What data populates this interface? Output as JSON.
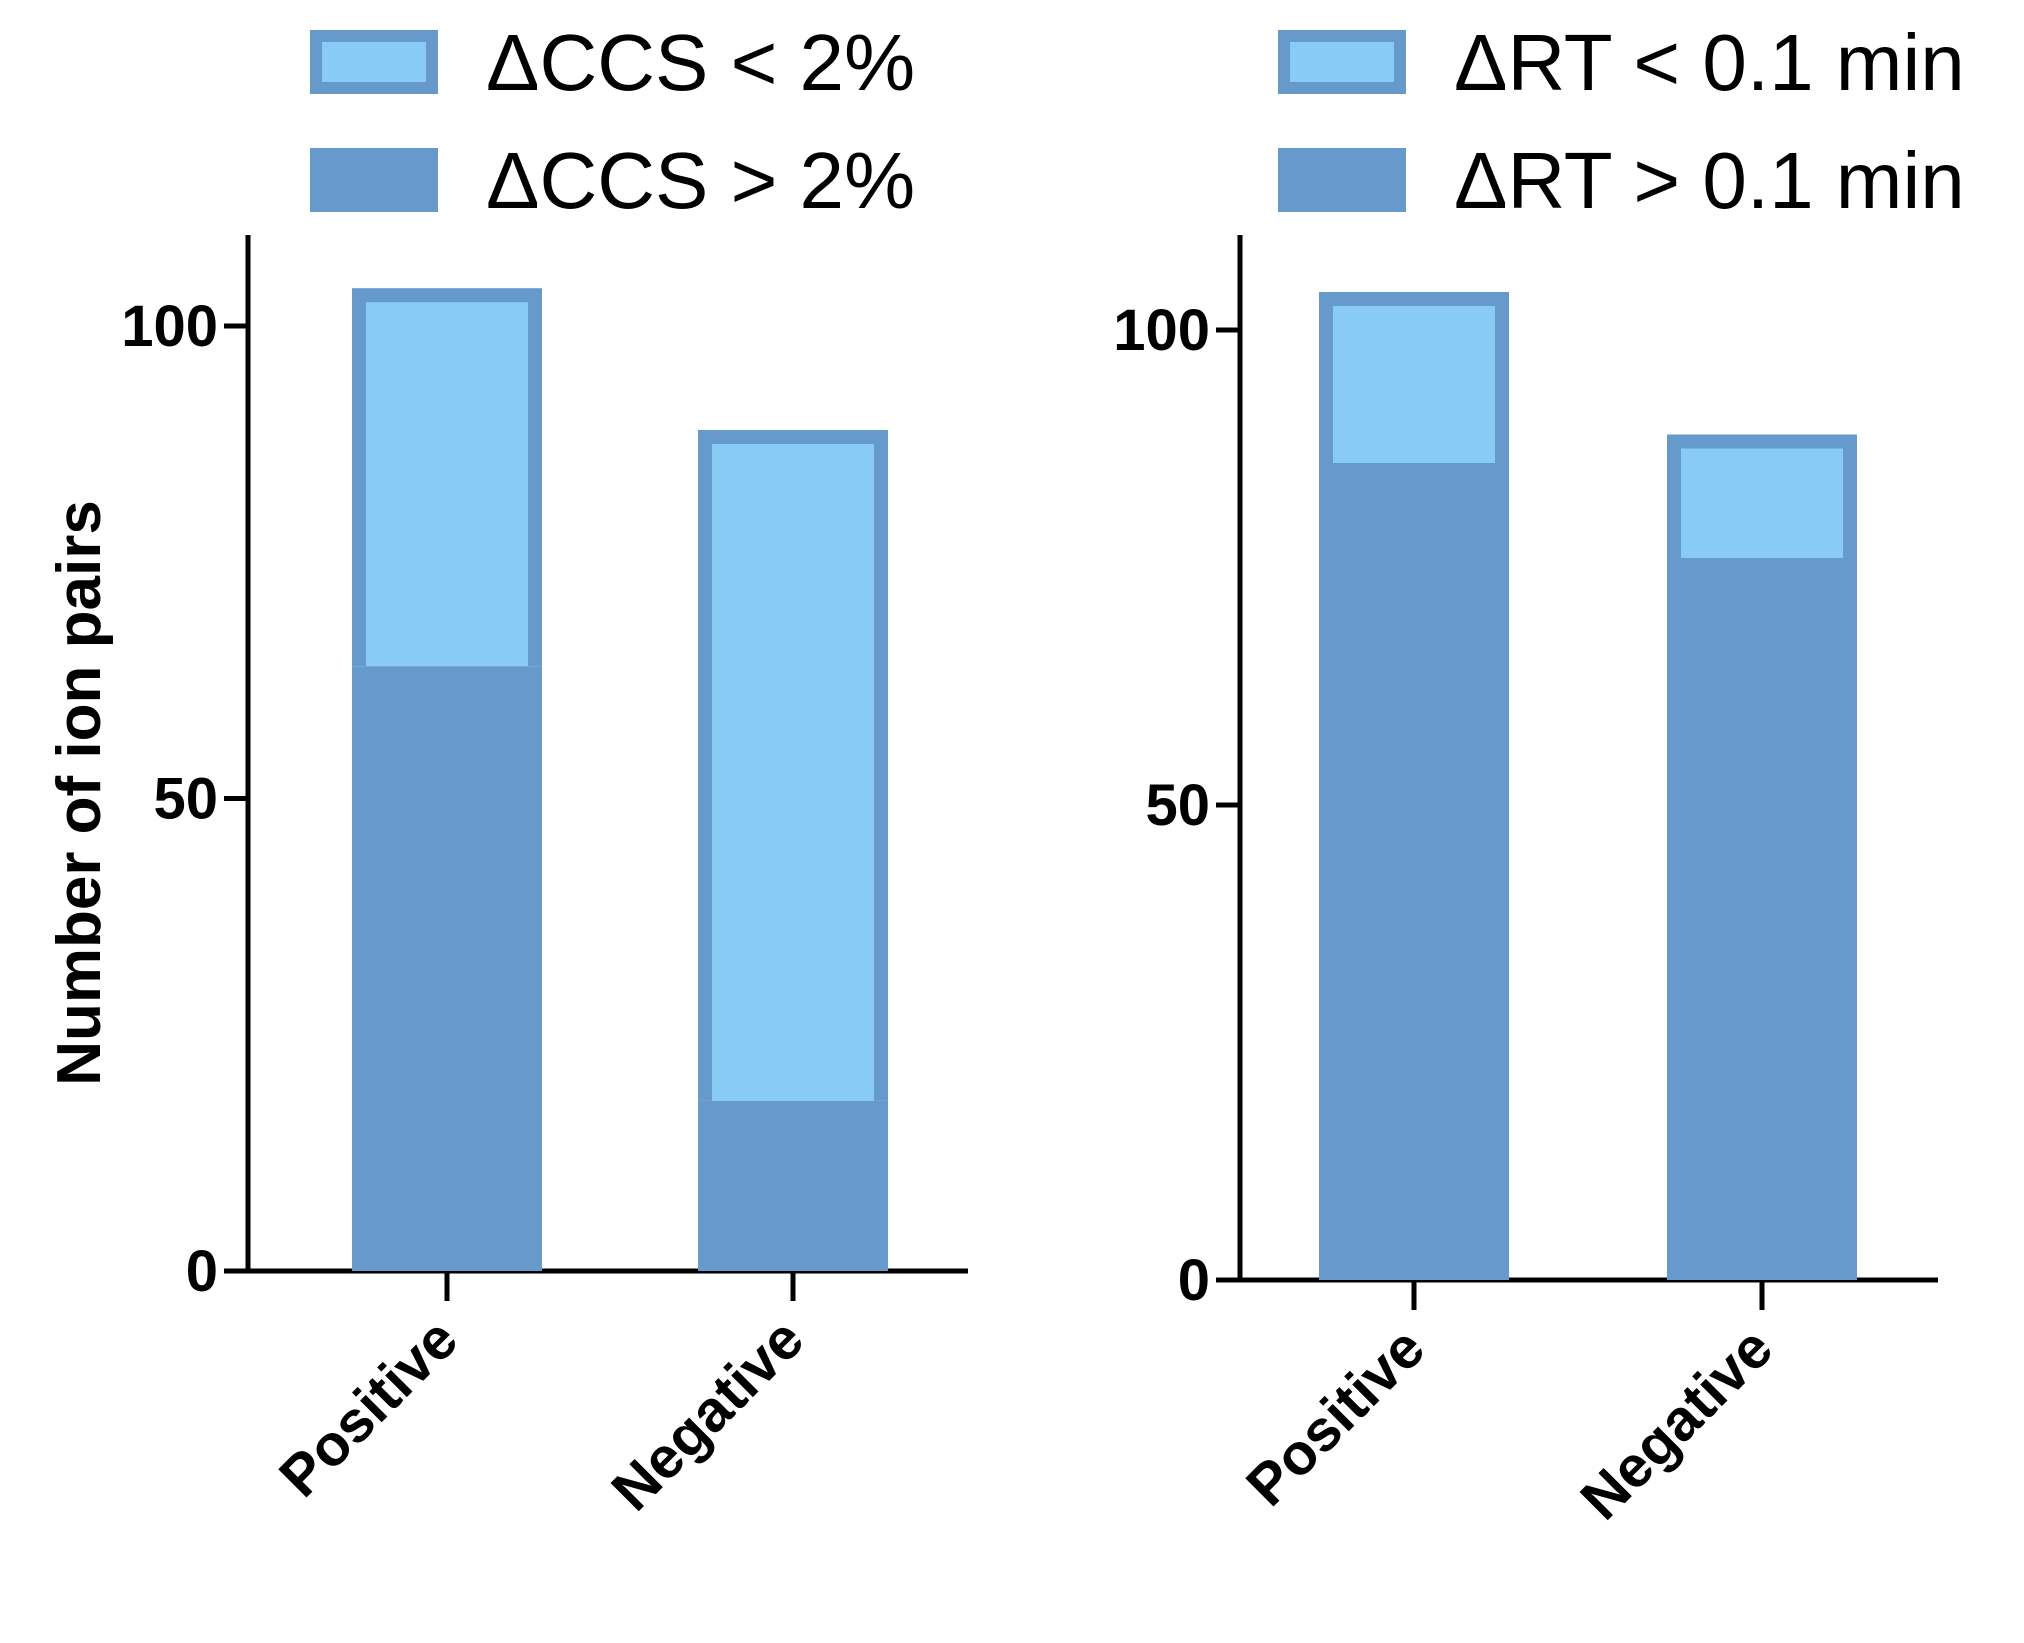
{
  "chart_data": [
    {
      "type": "bar",
      "stacked": true,
      "categories": [
        "Positive",
        "Negative"
      ],
      "series": [
        {
          "name": "ΔCCS > 2%",
          "values": [
            64,
            18
          ],
          "color": "#6699cc"
        },
        {
          "name": "ΔCCS < 2%",
          "values": [
            40,
            71
          ],
          "color": "#88ccf5"
        }
      ],
      "ylabel": "Number of ion pairs",
      "xlabel": "",
      "ylim": [
        0,
        110
      ],
      "yticks": [
        0,
        50,
        100
      ],
      "legend_position": "top"
    },
    {
      "type": "bar",
      "stacked": true,
      "categories": [
        "Positive",
        "Negative"
      ],
      "series": [
        {
          "name": "ΔRT > 0.1 min",
          "values": [
            86,
            76
          ],
          "color": "#6699cc"
        },
        {
          "name": "ΔRT < 0.1 min",
          "values": [
            18,
            13
          ],
          "color": "#88ccf5"
        }
      ],
      "ylabel": "",
      "xlabel": "",
      "ylim": [
        0,
        110
      ],
      "yticks": [
        0,
        50,
        100
      ],
      "legend_position": "top"
    }
  ],
  "colors": {
    "dark_bar": "#6699cc",
    "light_bar": "#88ccf5",
    "outline": "#6699cc"
  }
}
